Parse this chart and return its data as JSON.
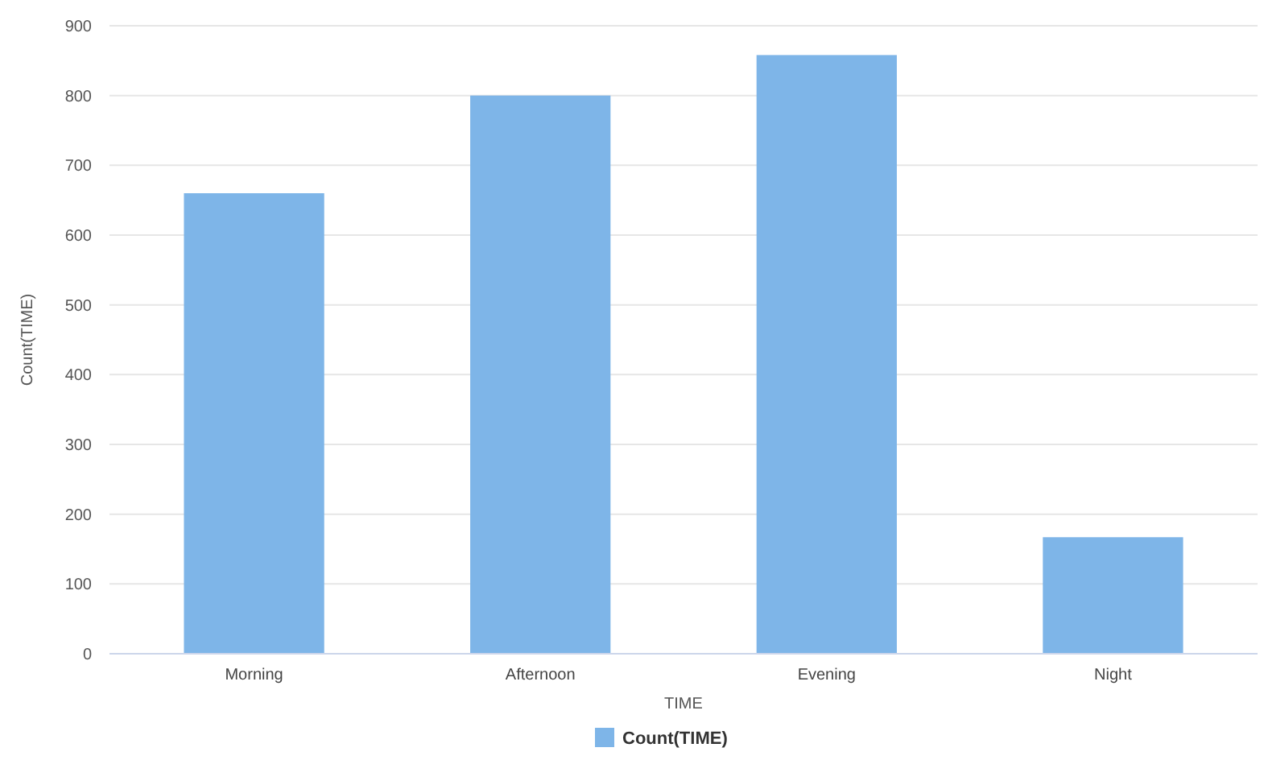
{
  "chart_data": {
    "type": "bar",
    "xlabel": "TIME",
    "ylabel": "Count(TIME)",
    "categories": [
      "Morning",
      "Afternoon",
      "Evening",
      "Night"
    ],
    "series": [
      {
        "name": "Count(TIME)",
        "color": "#7eb5e8",
        "values": [
          660,
          800,
          858,
          167
        ]
      }
    ],
    "ylim": [
      0,
      900
    ],
    "yticks": [
      0,
      100,
      200,
      300,
      400,
      500,
      600,
      700,
      800,
      900
    ],
    "grid": "y",
    "legend": "bottom"
  }
}
